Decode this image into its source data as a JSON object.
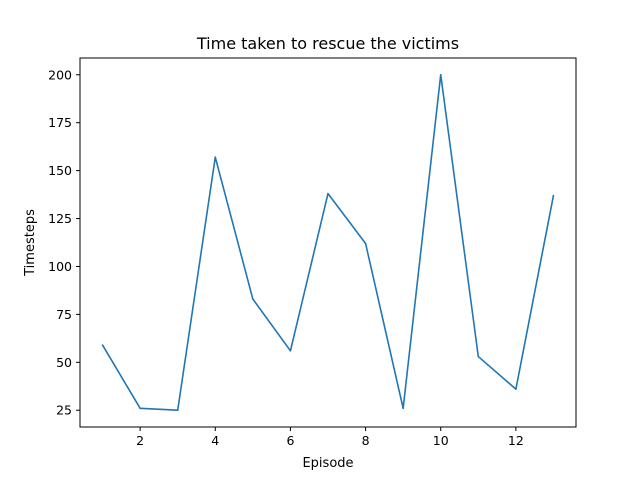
{
  "chart_data": {
    "type": "line",
    "title": "Time taken to rescue the victims",
    "xlabel": "Episode",
    "ylabel": "Timesteps",
    "xlim": [
      0.4,
      13.6
    ],
    "ylim": [
      16.25,
      208.75
    ],
    "xticks": [
      2,
      4,
      6,
      8,
      10,
      12
    ],
    "yticks": [
      25,
      50,
      75,
      100,
      125,
      150,
      175,
      200
    ],
    "grid": false,
    "series": [
      {
        "color": "#1f77b4",
        "x": [
          1,
          2,
          3,
          4,
          5,
          6,
          7,
          8,
          9,
          10,
          11,
          12,
          13
        ],
        "y": [
          59,
          26,
          25,
          157,
          83,
          56,
          138,
          112,
          26,
          200,
          53,
          36,
          137
        ]
      }
    ]
  }
}
